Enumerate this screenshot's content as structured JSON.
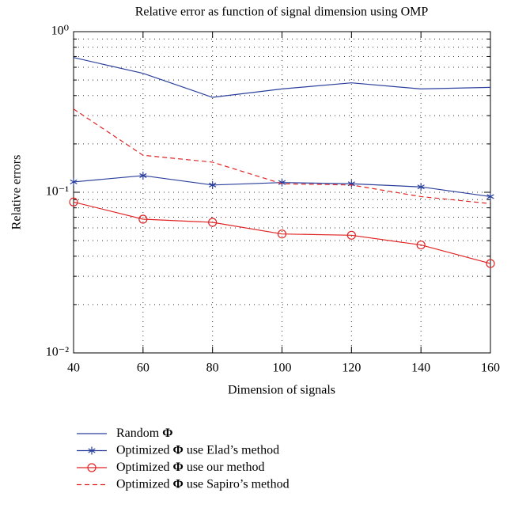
{
  "chart_data": {
    "type": "line",
    "title": "Relative error as function of signal dimension using OMP",
    "x_label": "Dimension of signals",
    "y_label": "Relative errors",
    "x": [
      40,
      60,
      80,
      100,
      120,
      140,
      160
    ],
    "xlim": [
      40,
      160
    ],
    "xticks": [
      40,
      60,
      80,
      100,
      120,
      140,
      160
    ],
    "ylim": [
      0.01,
      1
    ],
    "yticks": [
      {
        "value": 0.01,
        "label": "10⁻²"
      },
      {
        "value": 0.1,
        "label": "10⁻¹"
      },
      {
        "value": 1,
        "label": "10⁰"
      }
    ],
    "log_y": true,
    "grid": true,
    "minor_grid": true,
    "legend": "below",
    "series": [
      {
        "name": "Random Φ",
        "color": "#2a3f9c",
        "marker": "none",
        "dash": false,
        "values": [
          0.69,
          0.55,
          0.39,
          0.44,
          0.48,
          0.44,
          0.45
        ]
      },
      {
        "name": "Optimized Φ use Elad’s method",
        "color": "#2a3f9c",
        "marker": "star",
        "dash": false,
        "values": [
          0.116,
          0.127,
          0.111,
          0.115,
          0.113,
          0.108,
          0.094
        ]
      },
      {
        "name": "Optimized Φ use our method",
        "color": "#e02424",
        "marker": "circle",
        "dash": false,
        "values": [
          0.087,
          0.068,
          0.065,
          0.055,
          0.054,
          0.047,
          0.036
        ]
      },
      {
        "name": "Optimized Φ use Sapiro’s method",
        "color": "#e02424",
        "marker": "none",
        "dash": true,
        "values": [
          0.33,
          0.17,
          0.154,
          0.113,
          0.111,
          0.094,
          0.085
        ]
      }
    ]
  }
}
